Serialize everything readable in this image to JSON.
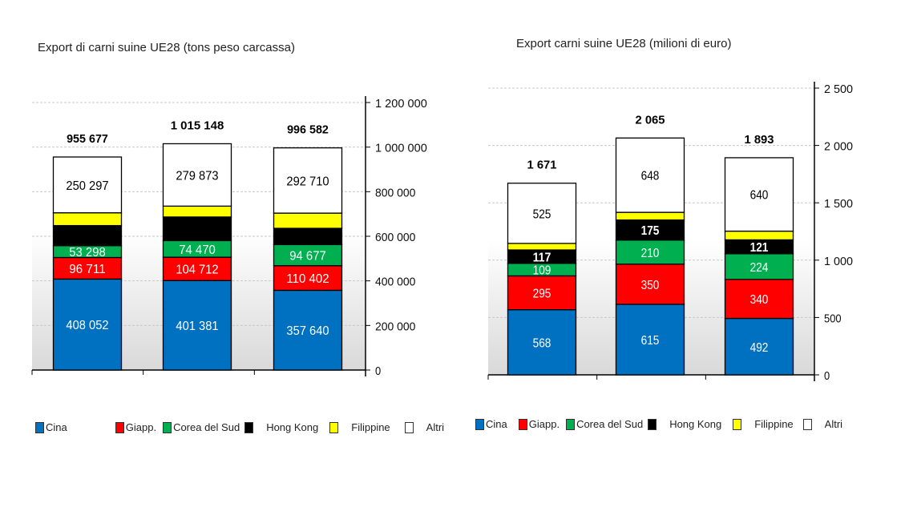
{
  "chart_data": [
    {
      "type": "bar",
      "stacked": true,
      "title": "Export di carni suine UE28 (tons peso carcassa)",
      "categories": [
        "",
        "",
        ""
      ],
      "ylim": [
        0,
        1200000
      ],
      "yticks": [
        "0",
        "200 000",
        "400 000",
        "600 000",
        "800 000",
        "1 000 000",
        "1 200 000"
      ],
      "ytick_values": [
        0,
        200000,
        400000,
        600000,
        800000,
        1000000,
        1200000
      ],
      "y_axis_side": "right",
      "grid": true,
      "legend_position": "bottom",
      "totals": [
        955677,
        1015148,
        996582
      ],
      "total_labels": [
        "955 677",
        "1 015 148",
        "996 582"
      ],
      "series": [
        {
          "name": "Cina",
          "color": "#0070C0",
          "values": [
            408052,
            401381,
            357640
          ],
          "labels": [
            "408 052",
            "401 381",
            "357 640"
          ],
          "label_color": "#ffffff"
        },
        {
          "name": "Giapp.",
          "color": "#FF0000",
          "values": [
            96711,
            104712,
            110402
          ],
          "labels": [
            "96 711",
            "104 712",
            "110 402"
          ],
          "label_color": "#ffffff"
        },
        {
          "name": "Corea del Sud",
          "color": "#00B050",
          "values": [
            53298,
            74470,
            94677
          ],
          "labels": [
            "53 298",
            "74 470",
            "94 677"
          ],
          "label_color": "#ffffff"
        },
        {
          "name": "Hong Kong",
          "color": "#000000",
          "values": [
            90000,
            106000,
            73000
          ],
          "labels": null
        },
        {
          "name": "Filippine",
          "color": "#FFFF00",
          "values": [
            57319,
            48712,
            68153
          ],
          "labels": null
        },
        {
          "name": "Altri",
          "color": "#FFFFFF",
          "values": [
            250297,
            279873,
            292710
          ],
          "labels": [
            "250 297",
            "279 873",
            "292 710"
          ],
          "label_color": "#000000"
        }
      ]
    },
    {
      "type": "bar",
      "stacked": true,
      "title": "Export carni suine UE28 (milioni di euro)",
      "categories": [
        "",
        "",
        ""
      ],
      "ylim": [
        0,
        2500
      ],
      "yticks": [
        "0",
        "500",
        "1 000",
        "1 500",
        "2 000",
        "2 500"
      ],
      "ytick_values": [
        0,
        500,
        1000,
        1500,
        2000,
        2500
      ],
      "y_axis_side": "right",
      "grid": true,
      "legend_position": "bottom",
      "totals": [
        1671,
        2065,
        1893
      ],
      "total_labels": [
        "1 671",
        "2 065",
        "1 893"
      ],
      "series": [
        {
          "name": "Cina",
          "color": "#0070C0",
          "values": [
            568,
            615,
            492
          ],
          "labels": [
            "568",
            "615",
            "492"
          ],
          "label_color": "#ffffff"
        },
        {
          "name": "Giapp.",
          "color": "#FF0000",
          "values": [
            295,
            350,
            340
          ],
          "labels": [
            "295",
            "350",
            "340"
          ],
          "label_color": "#ffffff"
        },
        {
          "name": "Corea del Sud",
          "color": "#00B050",
          "values": [
            109,
            210,
            224
          ],
          "labels": [
            "109",
            "210",
            "224"
          ],
          "label_color": "#ffffff"
        },
        {
          "name": "Hong Kong",
          "color": "#000000",
          "values": [
            117,
            175,
            121
          ],
          "labels": [
            "117",
            "175",
            "121"
          ],
          "label_color": "#ffffff",
          "label_bold": true
        },
        {
          "name": "Filippine",
          "color": "#FFFF00",
          "values": [
            57,
            67,
            76
          ],
          "labels": null
        },
        {
          "name": "Altri",
          "color": "#FFFFFF",
          "values": [
            525,
            648,
            640
          ],
          "labels": [
            "525",
            "648",
            "640"
          ],
          "label_color": "#000000"
        }
      ]
    }
  ]
}
